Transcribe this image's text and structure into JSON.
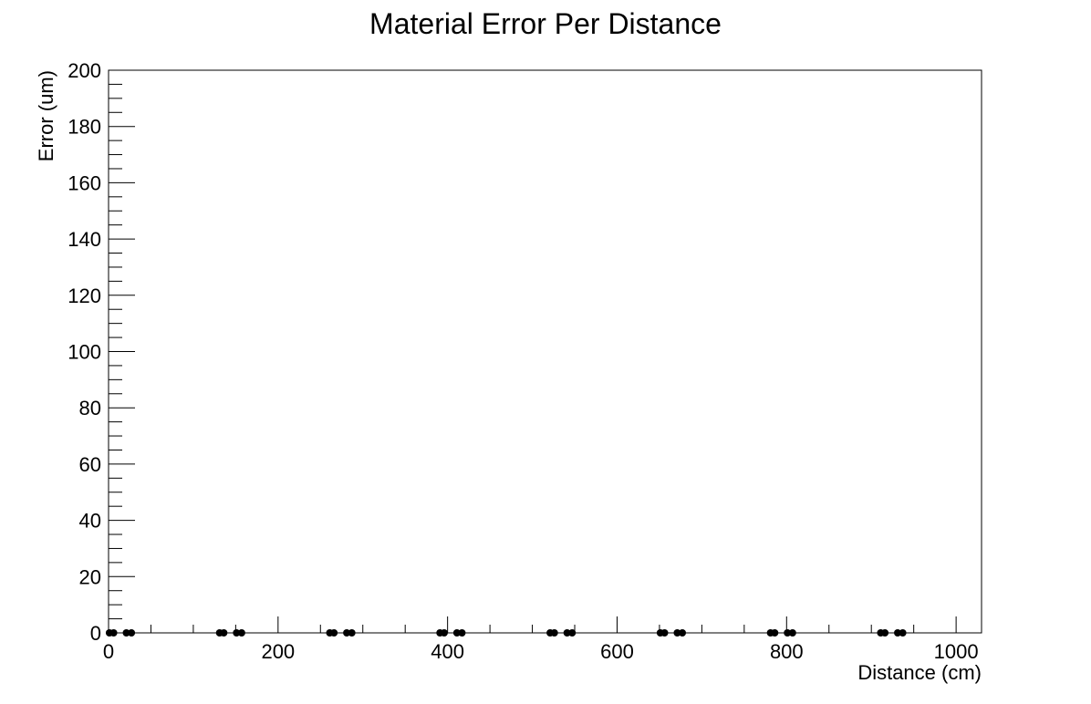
{
  "chart_data": {
    "type": "scatter",
    "title": "Material Error Per Distance",
    "xlabel": "Distance (cm)",
    "ylabel": "Error (um)",
    "xlim": [
      0,
      1030
    ],
    "ylim": [
      0,
      200
    ],
    "grid": false,
    "x_ticks": [
      0,
      200,
      400,
      600,
      800,
      1000
    ],
    "y_ticks": [
      0,
      20,
      40,
      60,
      80,
      100,
      120,
      140,
      160,
      180,
      200
    ],
    "marker_color": "#000000",
    "x": [
      1,
      6,
      21,
      27,
      131,
      136,
      151,
      157,
      261,
      266,
      281,
      287,
      391,
      396,
      411,
      417,
      521,
      526,
      541,
      547,
      651,
      656,
      671,
      677,
      781,
      786,
      801,
      807,
      911,
      916,
      931,
      937
    ],
    "y": [
      0,
      0,
      0,
      0,
      0,
      0,
      0,
      0,
      0,
      0,
      0,
      0,
      0,
      0,
      0,
      0,
      0,
      0,
      0,
      0,
      0,
      0,
      0,
      0,
      0,
      0,
      0,
      0,
      0,
      0,
      0,
      0
    ]
  }
}
